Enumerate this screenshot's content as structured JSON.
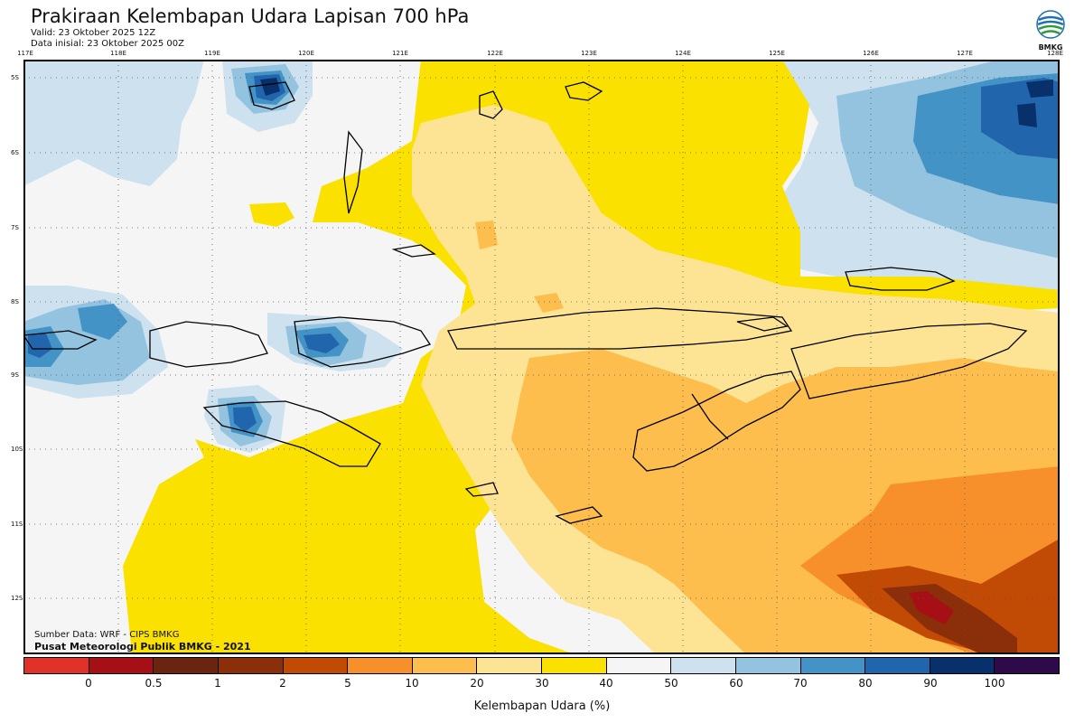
{
  "header": {
    "title": "Prakiraan Kelembapan Udara Lapisan 700 hPa",
    "valid": "Valid: 23 Oktober 2025 12Z",
    "initial": "Data inisial: 23 Oktober 2025 00Z"
  },
  "logo": {
    "text": "BMKG"
  },
  "map": {
    "lon_labels": [
      "117E",
      "118E",
      "119E",
      "120E",
      "121E",
      "122E",
      "123E",
      "124E",
      "125E",
      "126E",
      "127E",
      "128E"
    ],
    "lat_labels": [
      "5S",
      "6S",
      "7S",
      "8S",
      "9S",
      "10S",
      "11S",
      "12S"
    ],
    "source": "Sumber Data: WRF - CIPS BMKG",
    "credit": "Pusat Meteorologi Publik BMKG - 2021"
  },
  "colorbar": {
    "title": "Kelembapan Udara (%)",
    "ticks": [
      "0",
      "0.5",
      "1",
      "2",
      "5",
      "10",
      "20",
      "30",
      "40",
      "50",
      "60",
      "70",
      "80",
      "90",
      "100"
    ],
    "colors": [
      "#e03228",
      "#a50f15",
      "#6b2410",
      "#8b2e0a",
      "#c14a05",
      "#f7902a",
      "#fdbe4d",
      "#fde494",
      "#fae100",
      "#f5f5f5",
      "#cde1ef",
      "#93c3df",
      "#4393c6",
      "#2166ac",
      "#08306b",
      "#2e0a4a"
    ]
  },
  "icons": {
    "logo": "bmkg-logo-icon"
  }
}
